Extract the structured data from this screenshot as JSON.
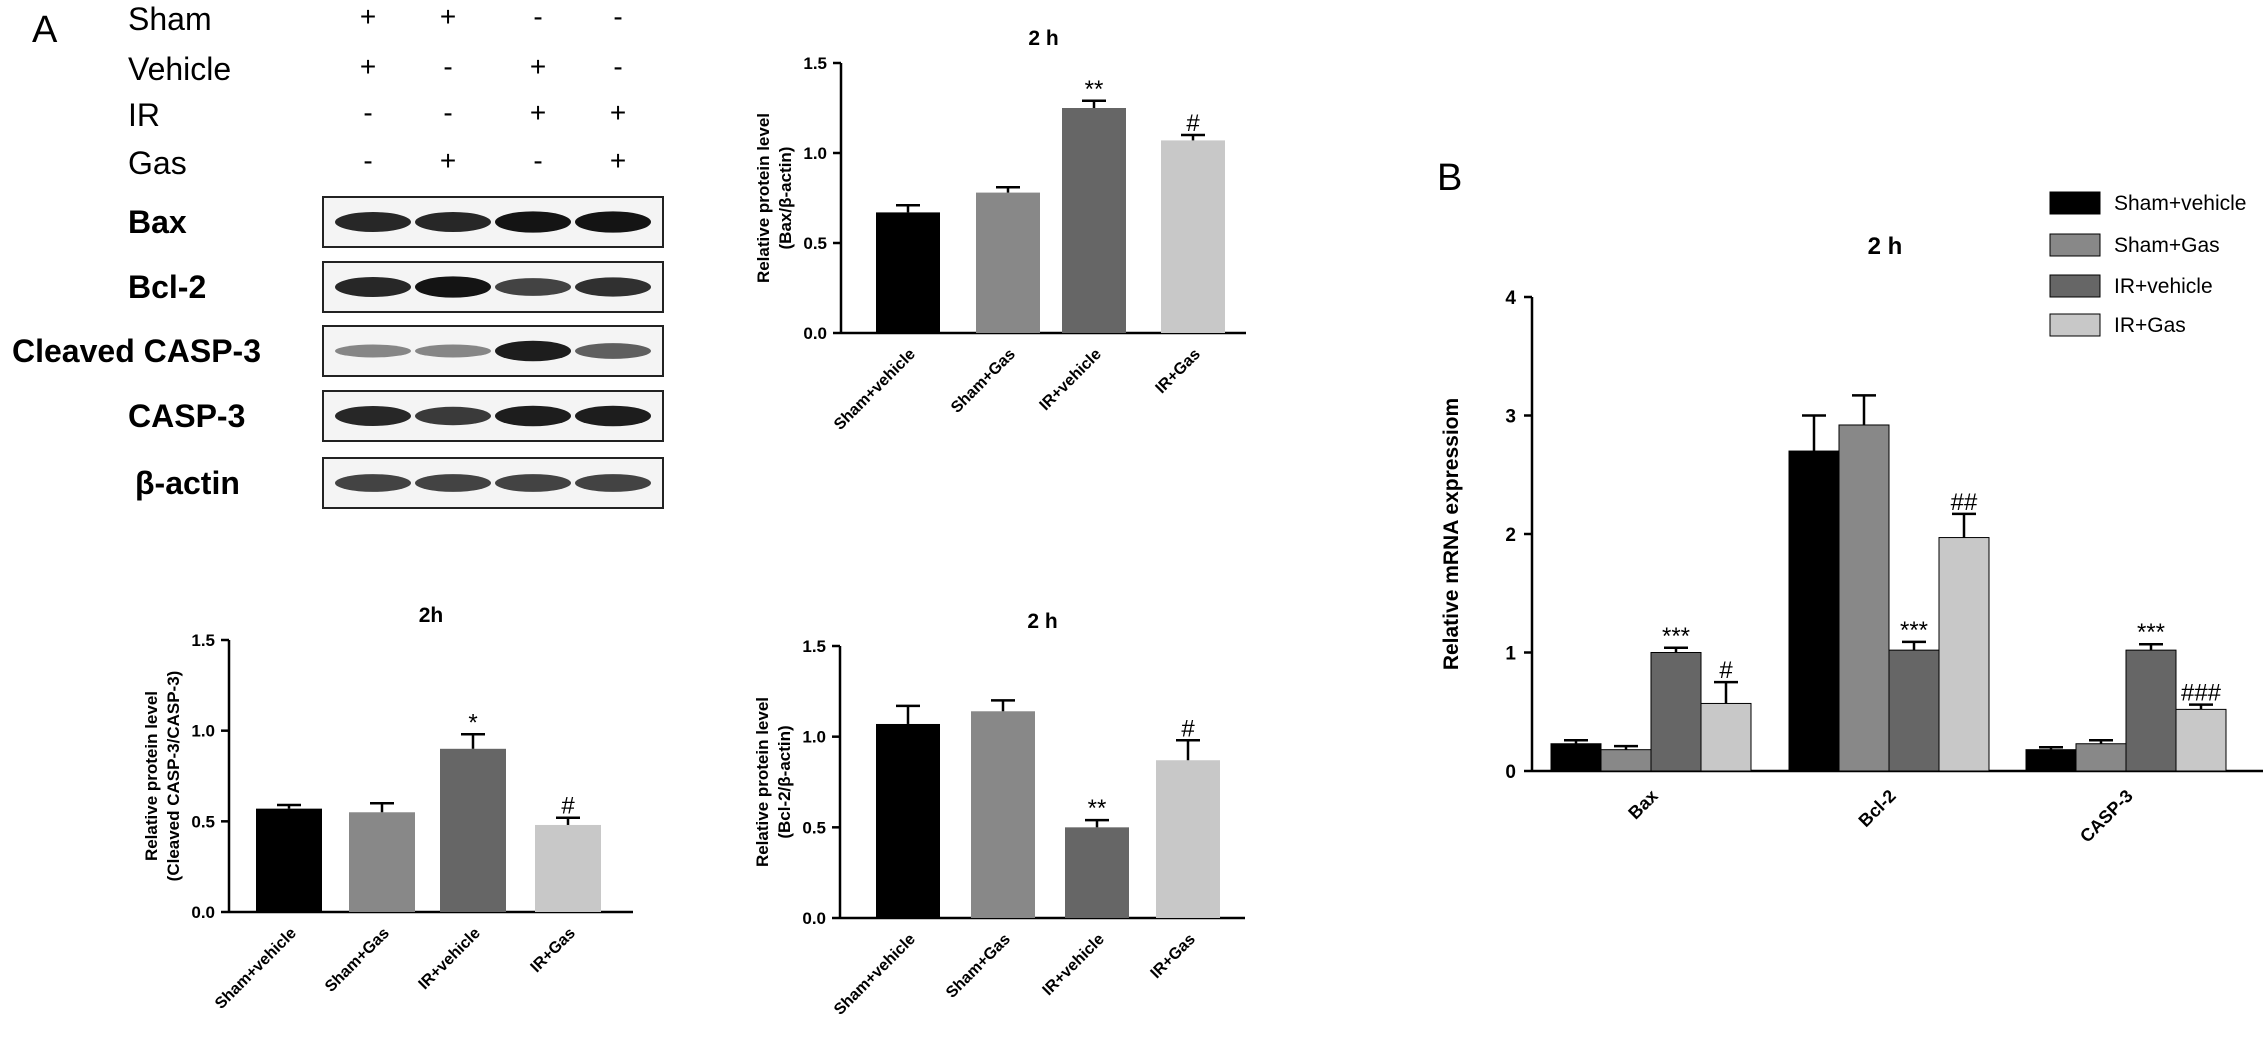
{
  "panels": [
    {
      "key": "A",
      "label": "A"
    },
    {
      "key": "B",
      "label": "B"
    }
  ],
  "blot": {
    "conditions": [
      {
        "name": "Sham",
        "signs": [
          "+",
          "+",
          "-",
          "-"
        ]
      },
      {
        "name": "Vehicle",
        "signs": [
          "+",
          "-",
          "+",
          "-"
        ]
      },
      {
        "name": "IR",
        "signs": [
          "-",
          "-",
          "+",
          "+"
        ]
      },
      {
        "name": "Gas",
        "signs": [
          "-",
          "+",
          "-",
          "+"
        ]
      }
    ],
    "bands": [
      {
        "name": "Bax",
        "intensity": [
          0.85,
          0.85,
          0.95,
          0.95
        ],
        "bold": true
      },
      {
        "name": "Bcl-2",
        "intensity": [
          0.85,
          0.95,
          0.7,
          0.8
        ],
        "bold": true
      },
      {
        "name": "Cleaved CASP-3",
        "intensity": [
          0.35,
          0.35,
          0.9,
          0.55
        ],
        "bold": true
      },
      {
        "name": "CASP-3",
        "intensity": [
          0.85,
          0.75,
          0.9,
          0.9
        ],
        "bold": true
      },
      {
        "name": "β-actin",
        "intensity": [
          0.7,
          0.7,
          0.7,
          0.7
        ],
        "bold": true
      }
    ]
  },
  "colors": {
    "sham_vehicle": "#000000",
    "sham_gas": "#888888",
    "ir_vehicle": "#666666",
    "ir_gas": "#c8c8c8"
  },
  "chart_data": [
    {
      "id": "bax",
      "type": "bar",
      "title": "2 h",
      "ylabel_lines": [
        "Relative protein level",
        "(Bax/β-actin)"
      ],
      "categories": [
        "Sham+vehicle",
        "Sham+Gas",
        "IR+vehicle",
        "IR+Gas"
      ],
      "values": [
        0.67,
        0.78,
        1.25,
        1.07
      ],
      "errors": [
        0.04,
        0.03,
        0.04,
        0.03
      ],
      "annotations": [
        "",
        "",
        "**",
        "#"
      ],
      "ylim": [
        0,
        1.5
      ],
      "yticks": [
        "0.0",
        "0.5",
        "1.0",
        "1.5"
      ]
    },
    {
      "id": "cleaved",
      "type": "bar",
      "title": "2h",
      "ylabel_lines": [
        "Relative protein level",
        "(Cleaved CASP-3/CASP-3)"
      ],
      "categories": [
        "Sham+vehicle",
        "Sham+Gas",
        "IR+vehicle",
        "IR+Gas"
      ],
      "values": [
        0.57,
        0.55,
        0.9,
        0.48
      ],
      "errors": [
        0.02,
        0.05,
        0.08,
        0.04
      ],
      "annotations": [
        "",
        "",
        "*",
        "#"
      ],
      "ylim": [
        0,
        1.5
      ],
      "yticks": [
        "0.0",
        "0.5",
        "1.0",
        "1.5"
      ]
    },
    {
      "id": "bcl2",
      "type": "bar",
      "title": "2 h",
      "ylabel_lines": [
        "Relative protein level",
        "(Bcl-2/β-actin)"
      ],
      "categories": [
        "Sham+vehicle",
        "Sham+Gas",
        "IR+vehicle",
        "IR+Gas"
      ],
      "values": [
        1.07,
        1.14,
        0.5,
        0.87
      ],
      "errors": [
        0.1,
        0.06,
        0.04,
        0.11
      ],
      "annotations": [
        "",
        "",
        "**",
        "#"
      ],
      "ylim": [
        0,
        1.5
      ],
      "yticks": [
        "0.0",
        "0.5",
        "1.0",
        "1.5"
      ]
    },
    {
      "id": "mrna",
      "type": "bar",
      "title": "2 h",
      "ylabel": "Relative mRNA expressiom",
      "categories": [
        "Bax",
        "Bcl-2",
        "CASP-3"
      ],
      "series": [
        {
          "name": "Sham+vehicle",
          "values": [
            0.23,
            2.7,
            0.18
          ],
          "errors": [
            0.03,
            0.3,
            0.02
          ],
          "annotations": [
            "",
            "",
            ""
          ]
        },
        {
          "name": "Sham+Gas",
          "values": [
            0.18,
            2.92,
            0.23
          ],
          "errors": [
            0.03,
            0.25,
            0.03
          ],
          "annotations": [
            "",
            "",
            ""
          ]
        },
        {
          "name": "IR+vehicle",
          "values": [
            1.0,
            1.02,
            1.02
          ],
          "errors": [
            0.04,
            0.07,
            0.05
          ],
          "annotations": [
            "***",
            "***",
            "***"
          ]
        },
        {
          "name": "IR+Gas",
          "values": [
            0.57,
            1.97,
            0.52
          ],
          "errors": [
            0.18,
            0.2,
            0.04
          ],
          "annotations": [
            "#",
            "##",
            "###"
          ]
        }
      ],
      "ylim": [
        0,
        4
      ],
      "yticks": [
        "0",
        "1",
        "2",
        "3",
        "4"
      ],
      "legend": "top-right"
    }
  ]
}
